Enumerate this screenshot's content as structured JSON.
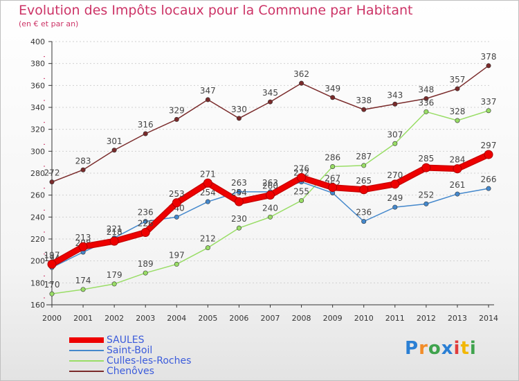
{
  "header": {
    "title": "Evolution des Impôts locaux pour la Commune par Habitant",
    "subtitle": "(en € et par an)"
  },
  "logo": {
    "letters": [
      "P",
      "r",
      "o",
      "x",
      "i",
      "t",
      "i"
    ]
  },
  "chart_data": {
    "type": "line",
    "x": [
      2000,
      2001,
      2002,
      2003,
      2004,
      2005,
      2006,
      2007,
      2008,
      2009,
      2010,
      2011,
      2012,
      2013,
      2014
    ],
    "ylim": [
      160,
      400
    ],
    "ytick_step": 20,
    "grid": "horizontal dotted",
    "legend_position": "bottom-left",
    "series": [
      {
        "name": "Chenôves",
        "color": "#7a2b2b",
        "stroke": "thin",
        "values": [
          272,
          283,
          301,
          316,
          329,
          347,
          330,
          345,
          362,
          349,
          338,
          343,
          348,
          357,
          378
        ]
      },
      {
        "name": "Culles-les-Roches",
        "color": "#99dd66",
        "stroke": "thin",
        "values": [
          170,
          174,
          179,
          189,
          197,
          212,
          230,
          240,
          255,
          286,
          287,
          307,
          336,
          328,
          337
        ]
      },
      {
        "name": "Saint-Boil",
        "color": "#4488cc",
        "stroke": "thin",
        "values": [
          194,
          208,
          221,
          236,
          240,
          254,
          263,
          263,
          272,
          262,
          236,
          249,
          252,
          261,
          266
        ]
      },
      {
        "name": "SAULES",
        "color": "#ee0000",
        "stroke": "thick",
        "values": [
          197,
          213,
          218,
          226,
          253,
          271,
          254,
          260,
          276,
          267,
          265,
          270,
          285,
          284,
          297
        ]
      }
    ],
    "data_labels": {
      "Chenôves": [
        "272",
        "283",
        "301",
        "316",
        "329",
        "347",
        "330",
        "345",
        "362",
        "349",
        "338",
        "343",
        "348",
        "357",
        "378"
      ],
      "Culles-les-Roches": [
        "170",
        "174",
        "179",
        "189",
        "197",
        "212",
        "230",
        "240",
        "255",
        "286",
        "287",
        "307",
        "336",
        "328",
        "337"
      ],
      "Saint-Boil": [
        "194",
        "208",
        "221",
        "236",
        "240",
        "254",
        "263",
        "263",
        "272",
        "262",
        "236",
        "249",
        "252",
        "261",
        "266"
      ],
      "SAULES": [
        "197",
        "213",
        "218",
        "226",
        "253",
        "271",
        "254",
        "260",
        "276",
        "267",
        "265",
        "270",
        "285",
        "284",
        "297"
      ]
    }
  },
  "legend": {
    "items": [
      {
        "label": "SAULES",
        "color": "#ee0000",
        "thickness": 8
      },
      {
        "label": "Saint-Boil",
        "color": "#4488cc",
        "thickness": 2
      },
      {
        "label": "Culles-les-Roches",
        "color": "#99dd66",
        "thickness": 2
      },
      {
        "label": "Chenôves",
        "color": "#7a2b2b",
        "thickness": 2
      }
    ]
  }
}
